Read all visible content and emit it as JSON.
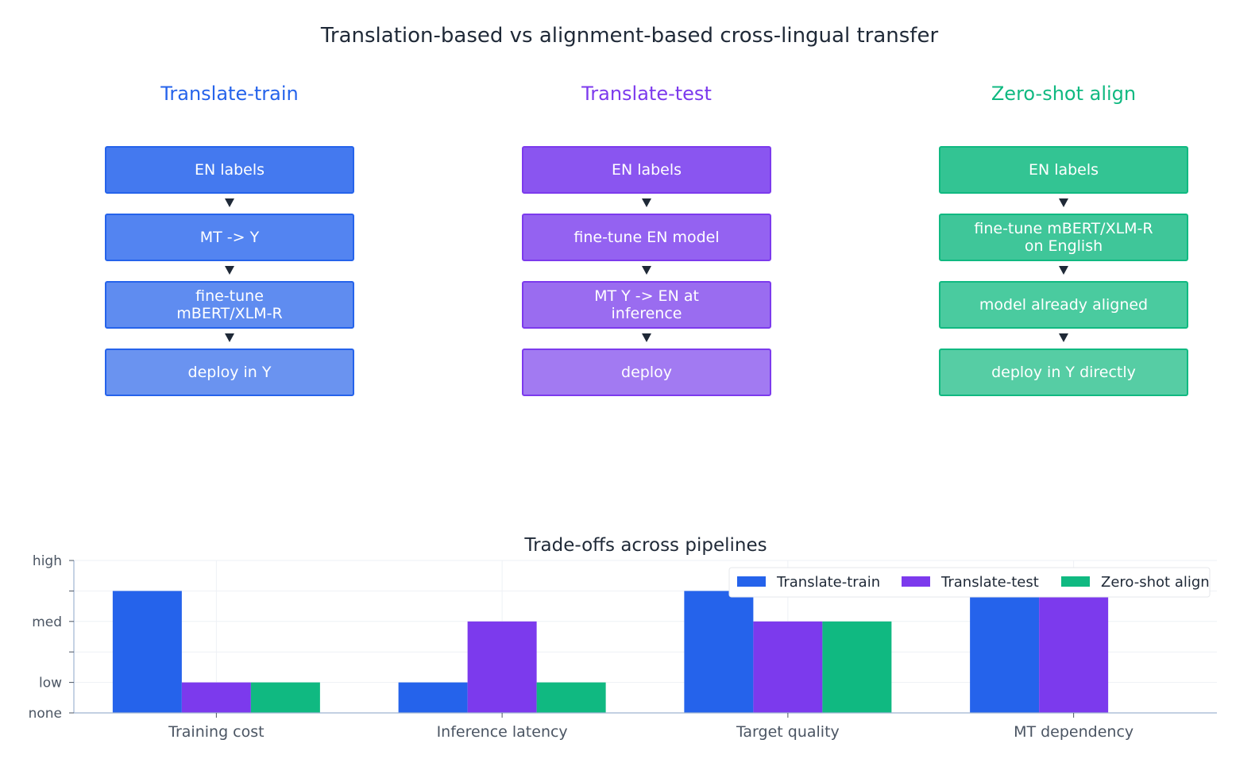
{
  "title": "Translation-based vs alignment-based cross-lingual transfer",
  "pipelines": [
    {
      "name": "Translate-train",
      "color": "#2563eb",
      "steps": [
        "EN labels",
        "MT -> Y",
        "fine-tune\nmBERT/XLM-R",
        "deploy in Y"
      ],
      "step_colors": [
        "#4479ef",
        "#5384f1",
        "#5f8cf0",
        "#6a93f0"
      ]
    },
    {
      "name": "Translate-test",
      "color": "#7c3aed",
      "steps": [
        "EN labels",
        "fine-tune EN model",
        "MT Y -> EN at\ninference",
        "deploy"
      ],
      "step_colors": [
        "#8a55f0",
        "#9462f1",
        "#9a6cf0",
        "#a27af2"
      ]
    },
    {
      "name": "Zero-shot align",
      "color": "#10b981",
      "steps": [
        "EN labels",
        "fine-tune mBERT/XLM-R\non English",
        "model already aligned",
        "deploy in Y directly"
      ],
      "step_colors": [
        "#33c493",
        "#3fc699",
        "#4acb9f",
        "#56cda4"
      ]
    }
  ],
  "chart_data": {
    "type": "bar",
    "title": "Trade-offs across pipelines",
    "categories": [
      "Training cost",
      "Inference latency",
      "Target quality",
      "MT dependency"
    ],
    "series": [
      {
        "name": "Translate-train",
        "color": "#2563eb",
        "values": [
          2,
          0.5,
          2,
          2
        ]
      },
      {
        "name": "Translate-test",
        "color": "#7c3aed",
        "values": [
          0.5,
          1.5,
          1.5,
          2
        ]
      },
      {
        "name": "Zero-shot align",
        "color": "#10b981",
        "values": [
          0.5,
          0.5,
          1.5,
          0
        ]
      }
    ],
    "ylim": [
      0,
      2.5
    ],
    "yticks": [
      {
        "value": 0,
        "label": "none"
      },
      {
        "value": 0.5,
        "label": "low"
      },
      {
        "value": 1,
        "label": ""
      },
      {
        "value": 1.5,
        "label": "med"
      },
      {
        "value": 2,
        "label": ""
      },
      {
        "value": 2.5,
        "label": "high"
      }
    ],
    "grid": true,
    "legend_position": "top-right"
  }
}
